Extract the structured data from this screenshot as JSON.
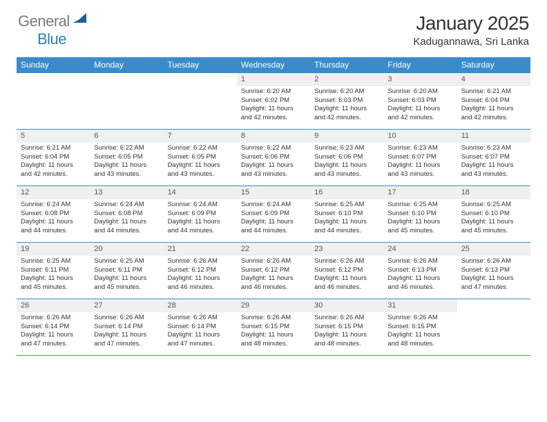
{
  "brand": {
    "part1": "General",
    "part2": "Blue"
  },
  "title": "January 2025",
  "location": "Kadugannawa, Sri Lanka",
  "colors": {
    "header_bg": "#3b8bc9",
    "header_text": "#ffffff",
    "daynum_bg": "#eef0f1",
    "border": "#3b8bc9",
    "logo_gray": "#7a7a7a",
    "logo_blue": "#2e7fc1"
  },
  "weekdays": [
    "Sunday",
    "Monday",
    "Tuesday",
    "Wednesday",
    "Thursday",
    "Friday",
    "Saturday"
  ],
  "weeks": [
    [
      {
        "empty": true
      },
      {
        "empty": true
      },
      {
        "empty": true
      },
      {
        "day": "1",
        "sunrise": "Sunrise: 6:20 AM",
        "sunset": "Sunset: 6:02 PM",
        "day1": "Daylight: 11 hours",
        "day2": "and 42 minutes."
      },
      {
        "day": "2",
        "sunrise": "Sunrise: 6:20 AM",
        "sunset": "Sunset: 6:03 PM",
        "day1": "Daylight: 11 hours",
        "day2": "and 42 minutes."
      },
      {
        "day": "3",
        "sunrise": "Sunrise: 6:20 AM",
        "sunset": "Sunset: 6:03 PM",
        "day1": "Daylight: 11 hours",
        "day2": "and 42 minutes."
      },
      {
        "day": "4",
        "sunrise": "Sunrise: 6:21 AM",
        "sunset": "Sunset: 6:04 PM",
        "day1": "Daylight: 11 hours",
        "day2": "and 42 minutes."
      }
    ],
    [
      {
        "day": "5",
        "sunrise": "Sunrise: 6:21 AM",
        "sunset": "Sunset: 6:04 PM",
        "day1": "Daylight: 11 hours",
        "day2": "and 42 minutes."
      },
      {
        "day": "6",
        "sunrise": "Sunrise: 6:22 AM",
        "sunset": "Sunset: 6:05 PM",
        "day1": "Daylight: 11 hours",
        "day2": "and 43 minutes."
      },
      {
        "day": "7",
        "sunrise": "Sunrise: 6:22 AM",
        "sunset": "Sunset: 6:05 PM",
        "day1": "Daylight: 11 hours",
        "day2": "and 43 minutes."
      },
      {
        "day": "8",
        "sunrise": "Sunrise: 6:22 AM",
        "sunset": "Sunset: 6:06 PM",
        "day1": "Daylight: 11 hours",
        "day2": "and 43 minutes."
      },
      {
        "day": "9",
        "sunrise": "Sunrise: 6:23 AM",
        "sunset": "Sunset: 6:06 PM",
        "day1": "Daylight: 11 hours",
        "day2": "and 43 minutes."
      },
      {
        "day": "10",
        "sunrise": "Sunrise: 6:23 AM",
        "sunset": "Sunset: 6:07 PM",
        "day1": "Daylight: 11 hours",
        "day2": "and 43 minutes."
      },
      {
        "day": "11",
        "sunrise": "Sunrise: 6:23 AM",
        "sunset": "Sunset: 6:07 PM",
        "day1": "Daylight: 11 hours",
        "day2": "and 43 minutes."
      }
    ],
    [
      {
        "day": "12",
        "sunrise": "Sunrise: 6:24 AM",
        "sunset": "Sunset: 6:08 PM",
        "day1": "Daylight: 11 hours",
        "day2": "and 44 minutes."
      },
      {
        "day": "13",
        "sunrise": "Sunrise: 6:24 AM",
        "sunset": "Sunset: 6:08 PM",
        "day1": "Daylight: 11 hours",
        "day2": "and 44 minutes."
      },
      {
        "day": "14",
        "sunrise": "Sunrise: 6:24 AM",
        "sunset": "Sunset: 6:09 PM",
        "day1": "Daylight: 11 hours",
        "day2": "and 44 minutes."
      },
      {
        "day": "15",
        "sunrise": "Sunrise: 6:24 AM",
        "sunset": "Sunset: 6:09 PM",
        "day1": "Daylight: 11 hours",
        "day2": "and 44 minutes."
      },
      {
        "day": "16",
        "sunrise": "Sunrise: 6:25 AM",
        "sunset": "Sunset: 6:10 PM",
        "day1": "Daylight: 11 hours",
        "day2": "and 44 minutes."
      },
      {
        "day": "17",
        "sunrise": "Sunrise: 6:25 AM",
        "sunset": "Sunset: 6:10 PM",
        "day1": "Daylight: 11 hours",
        "day2": "and 45 minutes."
      },
      {
        "day": "18",
        "sunrise": "Sunrise: 6:25 AM",
        "sunset": "Sunset: 6:10 PM",
        "day1": "Daylight: 11 hours",
        "day2": "and 45 minutes."
      }
    ],
    [
      {
        "day": "19",
        "sunrise": "Sunrise: 6:25 AM",
        "sunset": "Sunset: 6:11 PM",
        "day1": "Daylight: 11 hours",
        "day2": "and 45 minutes."
      },
      {
        "day": "20",
        "sunrise": "Sunrise: 6:25 AM",
        "sunset": "Sunset: 6:11 PM",
        "day1": "Daylight: 11 hours",
        "day2": "and 45 minutes."
      },
      {
        "day": "21",
        "sunrise": "Sunrise: 6:26 AM",
        "sunset": "Sunset: 6:12 PM",
        "day1": "Daylight: 11 hours",
        "day2": "and 46 minutes."
      },
      {
        "day": "22",
        "sunrise": "Sunrise: 6:26 AM",
        "sunset": "Sunset: 6:12 PM",
        "day1": "Daylight: 11 hours",
        "day2": "and 46 minutes."
      },
      {
        "day": "23",
        "sunrise": "Sunrise: 6:26 AM",
        "sunset": "Sunset: 6:12 PM",
        "day1": "Daylight: 11 hours",
        "day2": "and 46 minutes."
      },
      {
        "day": "24",
        "sunrise": "Sunrise: 6:26 AM",
        "sunset": "Sunset: 6:13 PM",
        "day1": "Daylight: 11 hours",
        "day2": "and 46 minutes."
      },
      {
        "day": "25",
        "sunrise": "Sunrise: 6:26 AM",
        "sunset": "Sunset: 6:13 PM",
        "day1": "Daylight: 11 hours",
        "day2": "and 47 minutes."
      }
    ],
    [
      {
        "day": "26",
        "sunrise": "Sunrise: 6:26 AM",
        "sunset": "Sunset: 6:14 PM",
        "day1": "Daylight: 11 hours",
        "day2": "and 47 minutes."
      },
      {
        "day": "27",
        "sunrise": "Sunrise: 6:26 AM",
        "sunset": "Sunset: 6:14 PM",
        "day1": "Daylight: 11 hours",
        "day2": "and 47 minutes."
      },
      {
        "day": "28",
        "sunrise": "Sunrise: 6:26 AM",
        "sunset": "Sunset: 6:14 PM",
        "day1": "Daylight: 11 hours",
        "day2": "and 47 minutes."
      },
      {
        "day": "29",
        "sunrise": "Sunrise: 6:26 AM",
        "sunset": "Sunset: 6:15 PM",
        "day1": "Daylight: 11 hours",
        "day2": "and 48 minutes."
      },
      {
        "day": "30",
        "sunrise": "Sunrise: 6:26 AM",
        "sunset": "Sunset: 6:15 PM",
        "day1": "Daylight: 11 hours",
        "day2": "and 48 minutes."
      },
      {
        "day": "31",
        "sunrise": "Sunrise: 6:26 AM",
        "sunset": "Sunset: 6:15 PM",
        "day1": "Daylight: 11 hours",
        "day2": "and 48 minutes."
      },
      {
        "empty": true
      }
    ]
  ]
}
